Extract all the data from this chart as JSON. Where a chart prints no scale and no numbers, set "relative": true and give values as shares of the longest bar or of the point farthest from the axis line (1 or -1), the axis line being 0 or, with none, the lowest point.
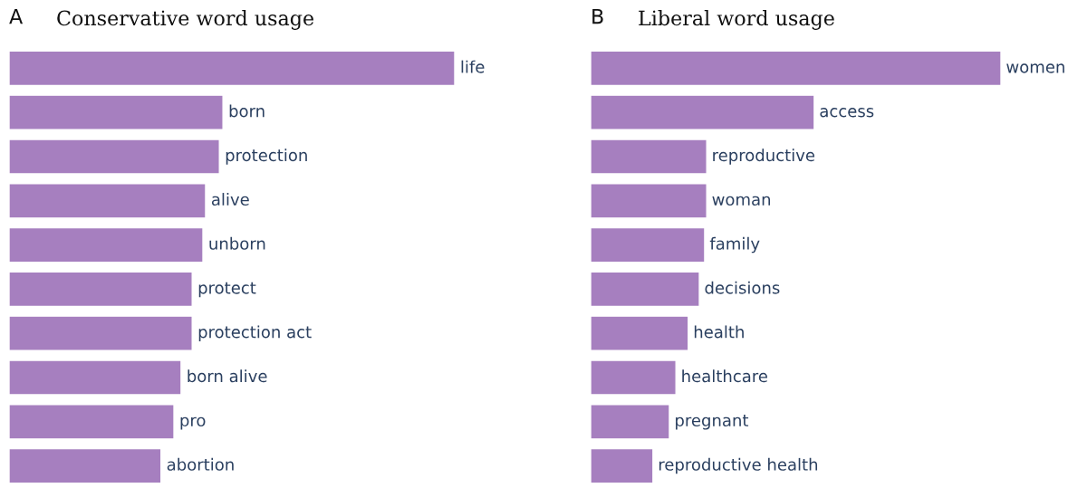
{
  "chart_data": [
    {
      "type": "bar",
      "orientation": "horizontal",
      "relative": true,
      "title": "Conservative word usage",
      "annotations": [
        "A"
      ],
      "color": "#a67fbf",
      "categories": [
        "life",
        "born",
        "protection",
        "alive",
        "unborn",
        "protect",
        "protection act",
        "born alive",
        "pro",
        "abortion"
      ],
      "values": [
        1,
        0.48,
        0.472,
        0.441,
        0.435,
        0.411,
        0.411,
        0.386,
        0.37,
        0.341
      ]
    },
    {
      "type": "bar",
      "orientation": "horizontal",
      "relative": true,
      "title": "Liberal word usage",
      "annotations": [
        "B"
      ],
      "color": "#a67fbf",
      "categories": [
        "women",
        "access",
        "reproductive",
        "woman",
        "family",
        "decisions",
        "health",
        "healthcare",
        "pregnant",
        "reproductive health"
      ],
      "values": [
        1,
        0.545,
        0.283,
        0.283,
        0.278,
        0.265,
        0.238,
        0.208,
        0.192,
        0.152
      ]
    }
  ]
}
